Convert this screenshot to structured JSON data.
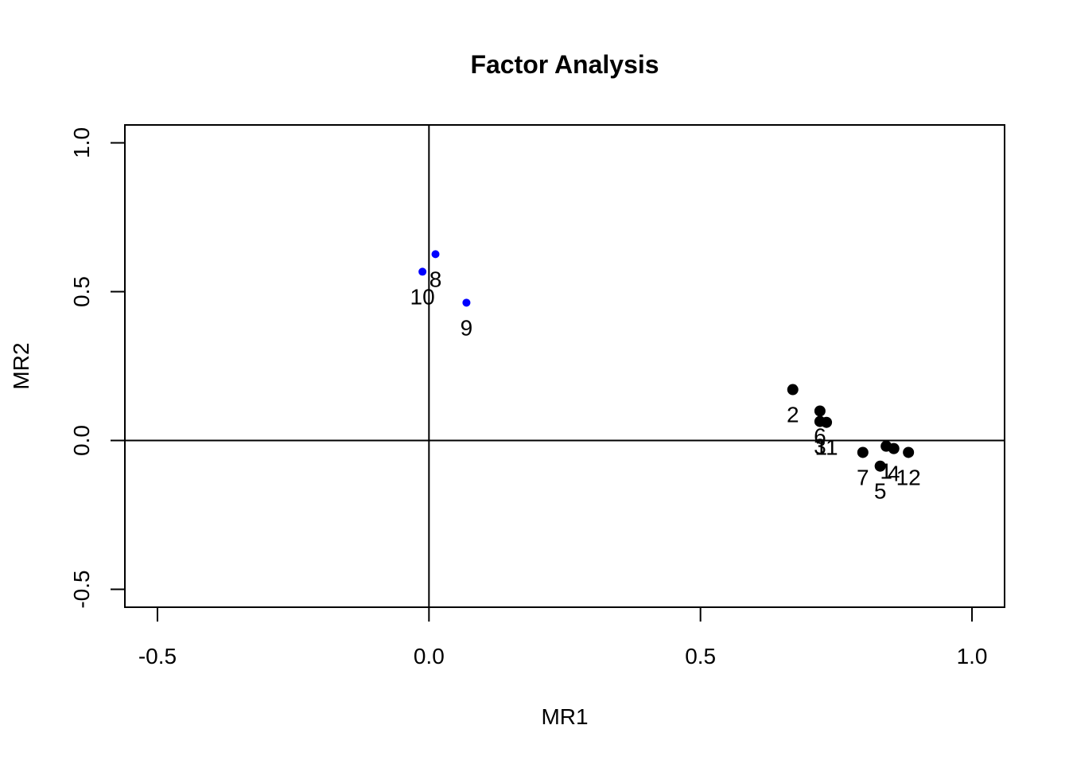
{
  "chart_data": {
    "type": "scatter",
    "title": "Factor Analysis",
    "x_label": "MR1",
    "y_label": "MR2",
    "xlim": [
      -0.56,
      1.06
    ],
    "ylim": [
      -0.56,
      1.06
    ],
    "xticks": [
      -0.5,
      {
        "value": 0,
        "label": "0.0"
      },
      0.5,
      {
        "value": 1,
        "label": "1.0"
      }
    ],
    "yticks": [
      -0.5,
      {
        "value": 0,
        "label": "0.0"
      },
      0.5,
      {
        "value": 1,
        "label": "1.0"
      }
    ],
    "hlines": [
      0
    ],
    "vlines": [
      0
    ],
    "series": [
      {
        "color": "#000000",
        "x": [
          0.842,
          0.67,
          0.72,
          0.856,
          0.831,
          0.72,
          0.799,
          0.732,
          0.883
        ],
        "values": [
          -0.019,
          0.171,
          0.064,
          -0.027,
          -0.086,
          0.099,
          -0.04,
          0.061,
          -0.04
        ],
        "labels": [
          "1",
          "2",
          "3",
          "4",
          "5",
          "6",
          "7",
          "11",
          "12"
        ]
      },
      {
        "color": "#0000ff",
        "x": [
          0.012,
          0.069,
          -0.012
        ],
        "values": [
          0.626,
          0.463,
          0.567
        ],
        "labels": [
          "8",
          "9",
          "10"
        ]
      }
    ]
  }
}
